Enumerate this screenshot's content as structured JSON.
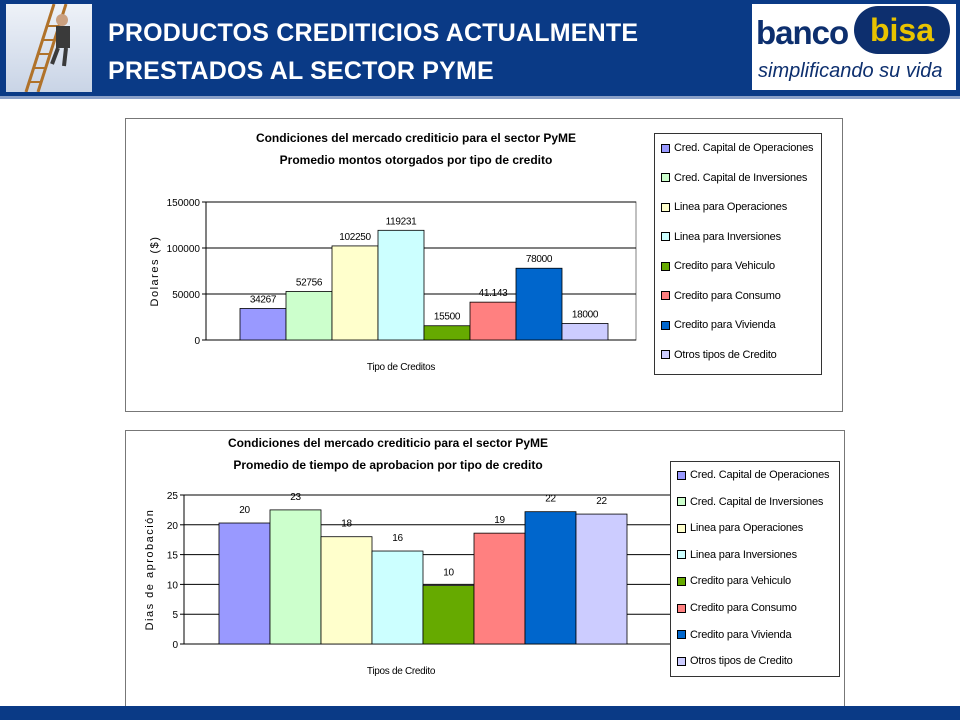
{
  "header": {
    "title_line1": "PRODUCTOS CREDITICIOS ACTUALMENTE",
    "title_line2": "PRESTADOS AL SECTOR PYME",
    "logo_word": "banco",
    "logo_mark": "bisa",
    "slogan": "simplificando su vida"
  },
  "colors": {
    "header_bg": "#0a3a86",
    "plot_bg": "#ffffff",
    "gridline": "#000000"
  },
  "series_colors": [
    "#9999ff",
    "#ccffcc",
    "#ffffcc",
    "#ccffff",
    "#66aa00",
    "#ff8080",
    "#0066cc",
    "#ccccff"
  ],
  "chart_data": [
    {
      "type": "bar",
      "title": "Condiciones del mercado crediticio para el sector PyME",
      "subtitle": "Promedio montos otorgados por tipo de credito",
      "xlabel": "Tipo de Creditos",
      "ylabel": "Dolares ($)",
      "ylim": [
        0,
        150000
      ],
      "yticks": [
        0,
        50000,
        100000,
        150000
      ],
      "ytick_labels": [
        "0",
        "50000",
        "100000",
        "150000"
      ],
      "grid": true,
      "legend": "right",
      "categories": [
        "Cred. Capital de Operaciones",
        "Cred. Capital de Inversiones",
        "Linea para Operaciones",
        "Linea para Inversiones",
        "Credito para Vehiculo",
        "Credito para Consumo",
        "Credito para Vivienda",
        "Otros tipos de Credito"
      ],
      "values": [
        34267,
        52756,
        102250,
        119231,
        15500,
        41143,
        78000,
        18000
      ],
      "data_labels": [
        "34267",
        "52756",
        "102250",
        "119231",
        "15500",
        "41.143",
        "78000",
        "18000"
      ]
    },
    {
      "type": "bar",
      "title": "Condiciones del mercado crediticio para el sector PyME",
      "subtitle": "Promedio de tiempo de aprobacion por tipo de credito",
      "xlabel": "Tipos de Credito",
      "ylabel": "Dias de aprobación",
      "ylim": [
        0,
        25
      ],
      "yticks": [
        0,
        5,
        10,
        15,
        20,
        25
      ],
      "ytick_labels": [
        "0",
        "5",
        "10",
        "15",
        "20",
        "25"
      ],
      "grid": true,
      "legend": "right",
      "categories": [
        "Cred. Capital de Operaciones",
        "Cred. Capital de Inversiones",
        "Linea para Operaciones",
        "Linea para Inversiones",
        "Credito para Vehiculo",
        "Credito para Consumo",
        "Credito para Vivienda",
        "Otros tipos de Credito"
      ],
      "values": [
        20.3,
        22.5,
        18,
        15.6,
        9.8,
        18.6,
        22.2,
        21.8
      ],
      "data_labels": [
        "20",
        "23",
        "18",
        "16",
        "10",
        "19",
        "22",
        "22"
      ]
    }
  ]
}
